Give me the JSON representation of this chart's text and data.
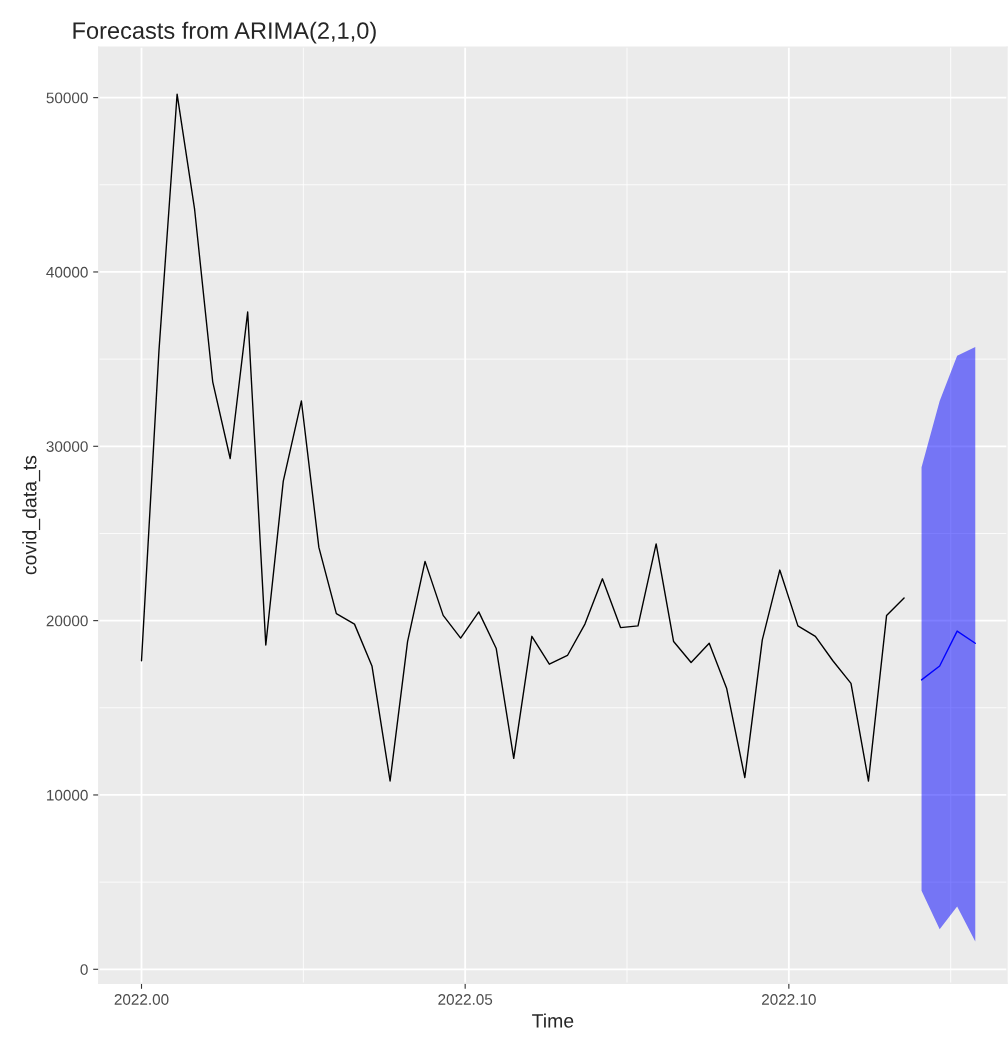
{
  "chart_data": {
    "type": "line",
    "title": "Forecasts from ARIMA(2,1,0)",
    "xlabel": "Time",
    "ylabel": "covid_data_ts",
    "series": [
      {
        "color": "#000000",
        "x": [
          2022.0,
          2022.0027,
          2022.0055,
          2022.0082,
          2022.011,
          2022.0137,
          2022.0164,
          2022.0192,
          2022.0219,
          2022.0247,
          2022.0274,
          2022.0301,
          2022.0329,
          2022.0356,
          2022.0384,
          2022.0411,
          2022.0438,
          2022.0466,
          2022.0493,
          2022.0521,
          2022.0548,
          2022.0575,
          2022.0603,
          2022.063,
          2022.0658,
          2022.0685,
          2022.0712,
          2022.074,
          2022.0767,
          2022.0795,
          2022.0822,
          2022.0849,
          2022.0877,
          2022.0904,
          2022.0932,
          2022.0959,
          2022.0986,
          2022.1014,
          2022.1041,
          2022.1068,
          2022.1096,
          2022.1123,
          2022.1151,
          2022.1178
        ],
        "values": [
          17700,
          35500,
          50200,
          43600,
          33700,
          29300,
          37700,
          18600,
          28000,
          32600,
          24200,
          20400,
          19800,
          17400,
          10800,
          18800,
          23400,
          20300,
          19000,
          20500,
          18400,
          12100,
          19100,
          17500,
          18000,
          19800,
          22400,
          19600,
          19700,
          24400,
          18800,
          17600,
          18700,
          16100,
          11000,
          18900,
          22900,
          19700,
          19100,
          17700,
          16400,
          10800,
          20300,
          21300
        ]
      },
      {
        "color": "#0000ff",
        "x": [
          2022.1205,
          2022.1233,
          2022.126,
          2022.1288
        ],
        "values": [
          16600,
          17400,
          19400,
          18700
        ],
        "lower": [
          4500,
          2300,
          3600,
          1600
        ],
        "upper": [
          28800,
          32600,
          35200,
          35700
        ]
      }
    ],
    "xlim": [
      2021.9934,
      2022.1337
    ],
    "ylim": [
      -800,
      52900
    ],
    "xticks": [
      {
        "value": 2022.0,
        "label": "2022.00"
      },
      {
        "value": 2022.05,
        "label": "2022.05"
      },
      {
        "value": 2022.1,
        "label": "2022.10"
      }
    ],
    "yticks": [
      0,
      10000,
      20000,
      30000,
      40000,
      50000
    ],
    "grid": true
  }
}
